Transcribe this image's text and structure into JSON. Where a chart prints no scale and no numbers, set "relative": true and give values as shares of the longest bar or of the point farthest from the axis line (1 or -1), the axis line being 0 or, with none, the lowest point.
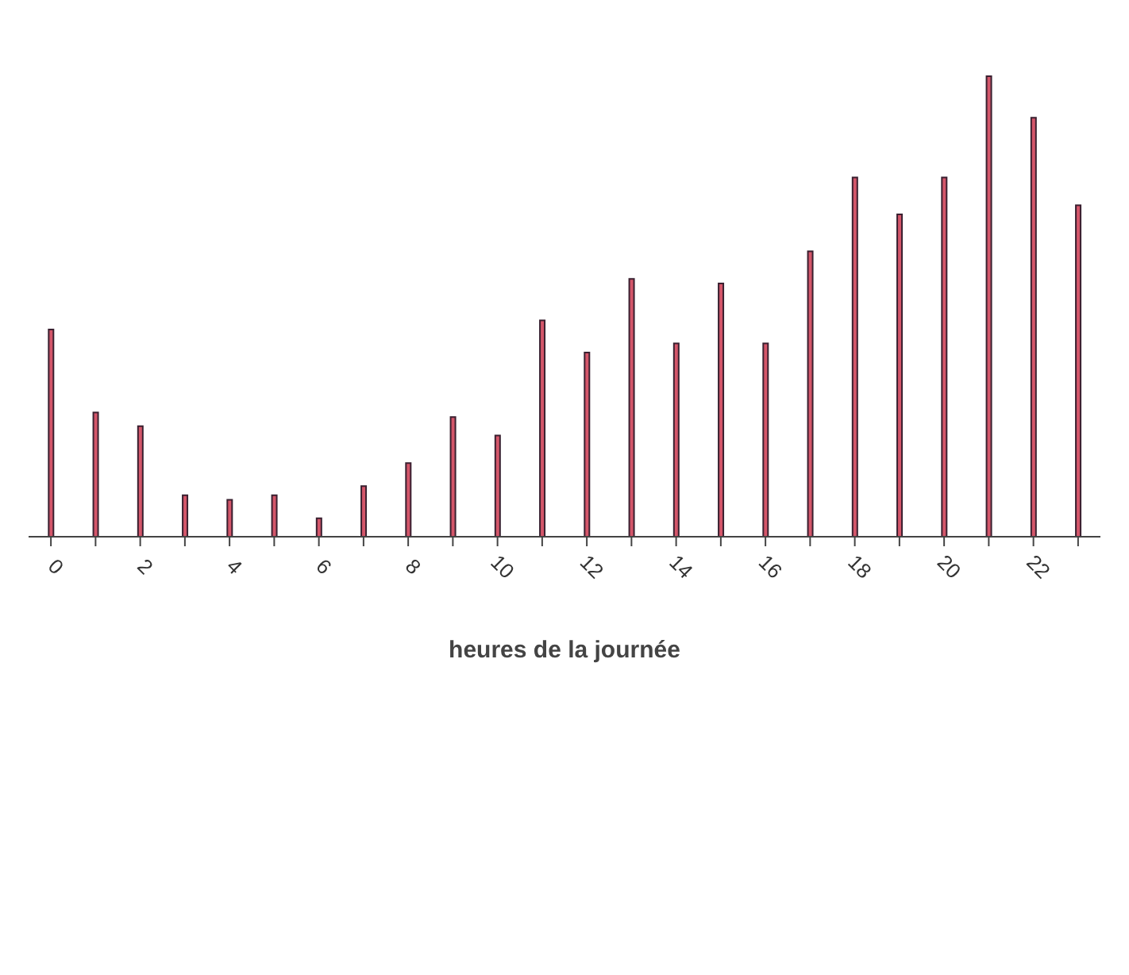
{
  "chart_data": {
    "type": "bar",
    "xlabel": "heures de la journée",
    "relative": true,
    "color": "#d4566a",
    "categories": [
      "0",
      null,
      "2",
      null,
      "4",
      null,
      "6",
      null,
      "8",
      null,
      "10",
      null,
      "12",
      null,
      "14",
      null,
      "16",
      null,
      "18",
      null,
      "20",
      null,
      "22",
      null
    ],
    "values": [
      0.45,
      0.27,
      0.24,
      0.09,
      0.08,
      0.09,
      0.04,
      0.11,
      0.16,
      0.26,
      0.22,
      0.47,
      0.4,
      0.56,
      0.42,
      0.55,
      0.42,
      0.62,
      0.78,
      0.7,
      0.78,
      1,
      0.91,
      0.72
    ],
    "grid": false,
    "legend": false
  }
}
